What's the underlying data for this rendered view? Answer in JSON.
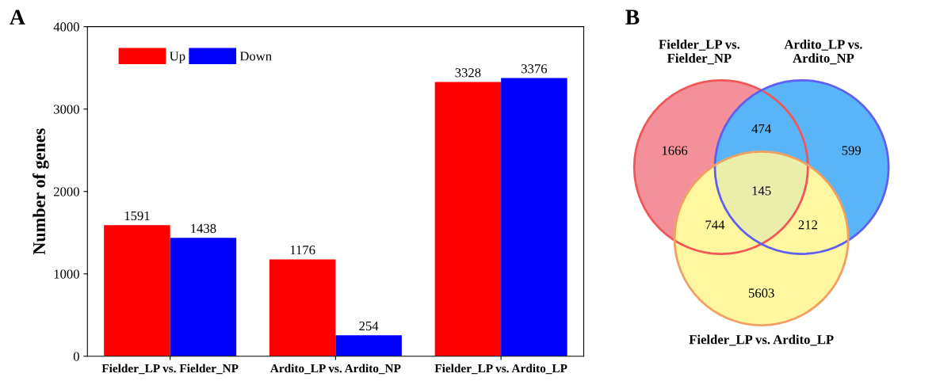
{
  "chart_data": [
    {
      "type": "bar",
      "ylabel": "Number of genes",
      "annotations": [
        "A"
      ],
      "categories": [
        "Fielder_LP vs. Fielder_NP",
        "Ardito_LP vs. Ardito_NP",
        "Fielder_LP vs. Ardito_LP"
      ],
      "series": [
        {
          "name": "Up",
          "color": "#ff0000",
          "values": [
            1591,
            1176,
            3328
          ]
        },
        {
          "name": "Down",
          "color": "#0000ff",
          "values": [
            1438,
            254,
            3376
          ]
        }
      ],
      "ylim": [
        0,
        4000
      ],
      "yticks": [
        0,
        1000,
        2000,
        3000,
        4000
      ],
      "data_labels": true,
      "legend": "top left",
      "grid": false
    },
    {
      "type": "other",
      "annotations": [
        "B",
        "Fielder_LP vs.\nFielder_NP",
        "Ardito_LP vs.\nArdito_NP",
        "Fielder_LP vs. Ardito_LP",
        "1666",
        "599",
        "5603",
        "474",
        "744",
        "212",
        "145"
      ]
    }
  ]
}
